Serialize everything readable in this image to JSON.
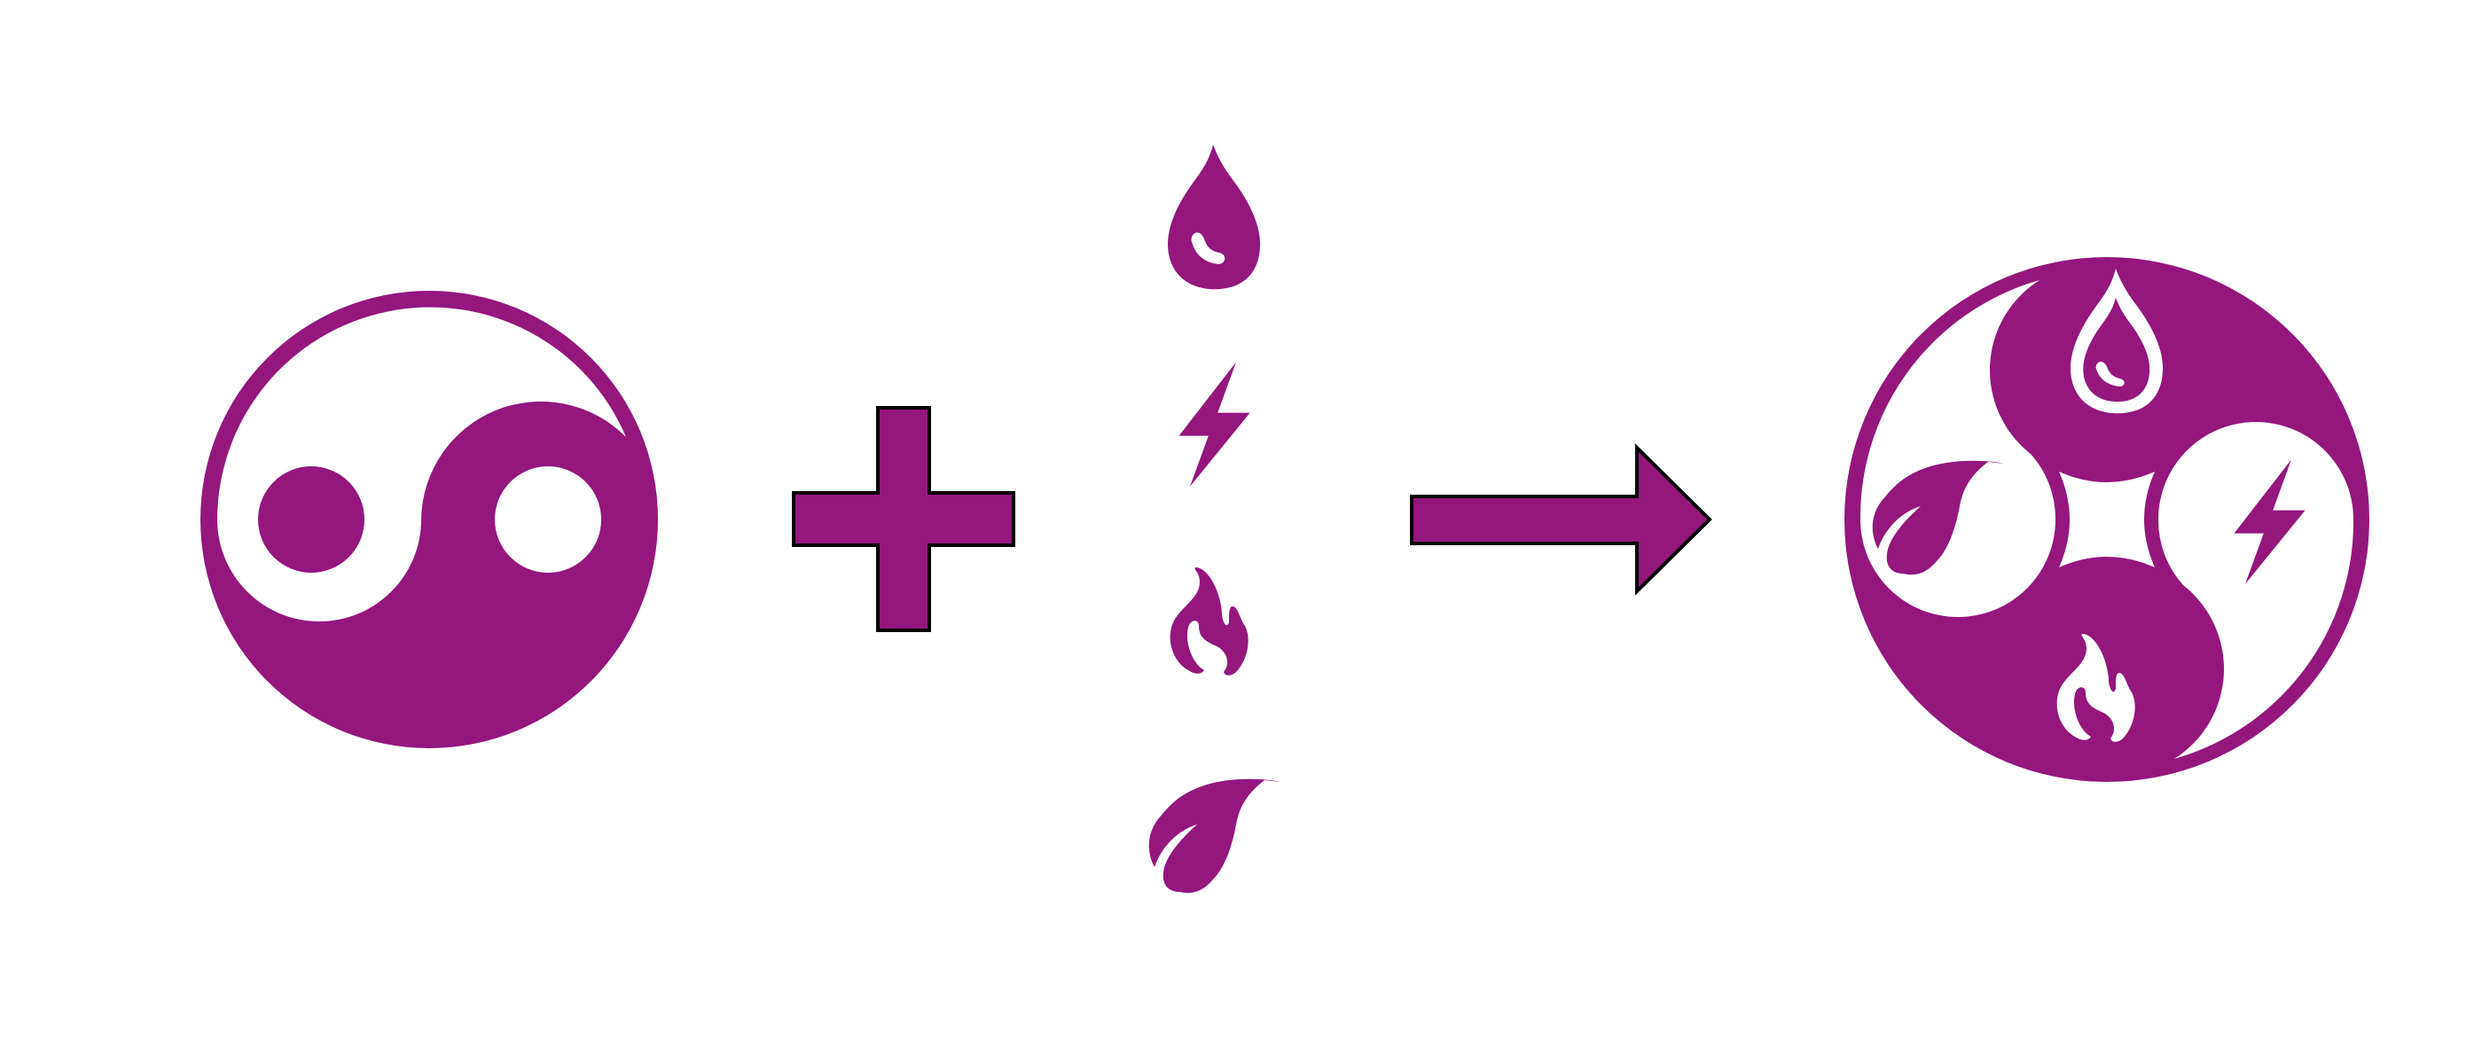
{
  "colors": {
    "accent": "#94177e",
    "background": "#ffffff",
    "outline": "#000000"
  },
  "diagram": {
    "operands": [
      "yin-yang",
      "element-icons"
    ],
    "operator": "plus",
    "result_arrow": "right-arrow",
    "result": "four-element-circle",
    "elements": [
      "water-drop-icon",
      "lightning-icon",
      "fire-icon",
      "leaf-icon"
    ]
  }
}
